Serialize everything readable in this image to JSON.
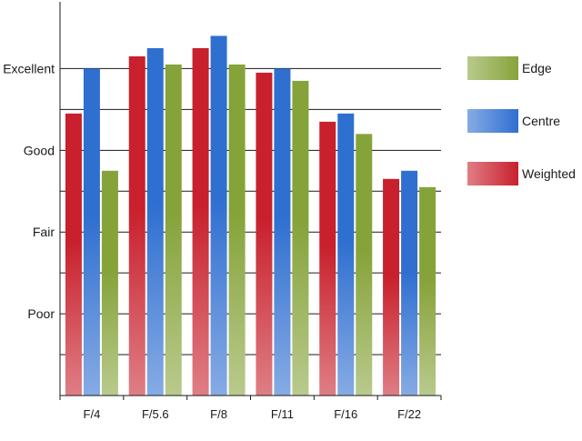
{
  "chart_data": {
    "type": "bar",
    "title": "",
    "xlabel": "",
    "ylabel": "",
    "categories": [
      "F/4",
      "F/5.6",
      "F/8",
      "F/11",
      "F/16",
      "F/22"
    ],
    "series": [
      {
        "name": "Weighted",
        "values": [
          6.9,
          8.3,
          8.5,
          7.9,
          6.7,
          5.3
        ],
        "color": "#c8202c"
      },
      {
        "name": "Centre",
        "values": [
          8.0,
          8.5,
          8.8,
          8.0,
          6.9,
          5.5
        ],
        "color": "#2f6fd0"
      },
      {
        "name": "Edge",
        "values": [
          5.5,
          8.1,
          8.1,
          7.7,
          6.4,
          5.1
        ],
        "color": "#86a33a"
      }
    ],
    "ylim": [
      0,
      9.5
    ],
    "yticks": [
      {
        "value": 2,
        "label": "Poor"
      },
      {
        "value": 4,
        "label": "Fair"
      },
      {
        "value": 6,
        "label": "Good"
      },
      {
        "value": 8,
        "label": "Excellent"
      }
    ],
    "ygrid": [
      1,
      2,
      3,
      4,
      5,
      6,
      7,
      8
    ],
    "grid": true,
    "legend": {
      "placement": "right",
      "order": [
        "Edge",
        "Centre",
        "Weighted"
      ]
    }
  }
}
